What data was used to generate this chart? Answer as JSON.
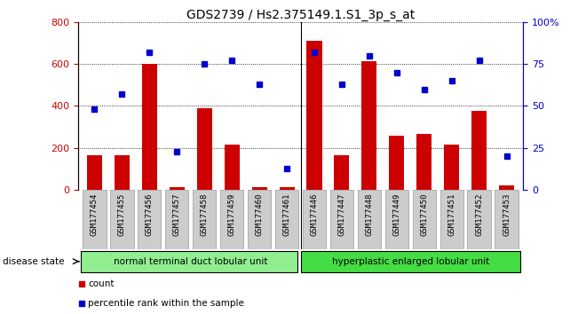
{
  "title": "GDS2739 / Hs2.375149.1.S1_3p_s_at",
  "samples": [
    "GSM177454",
    "GSM177455",
    "GSM177456",
    "GSM177457",
    "GSM177458",
    "GSM177459",
    "GSM177460",
    "GSM177461",
    "GSM177446",
    "GSM177447",
    "GSM177448",
    "GSM177449",
    "GSM177450",
    "GSM177451",
    "GSM177452",
    "GSM177453"
  ],
  "counts": [
    165,
    165,
    600,
    15,
    390,
    215,
    15,
    15,
    710,
    165,
    615,
    260,
    265,
    215,
    375,
    20
  ],
  "percentiles": [
    48,
    57,
    82,
    23,
    75,
    77,
    63,
    13,
    82,
    63,
    80,
    70,
    60,
    65,
    77,
    20
  ],
  "group1_label": "normal terminal duct lobular unit",
  "group2_label": "hyperplastic enlarged lobular unit",
  "group1_count": 8,
  "group2_count": 8,
  "ylim_left": [
    0,
    800
  ],
  "ylim_right": [
    0,
    100
  ],
  "yticks_left": [
    0,
    200,
    400,
    600,
    800
  ],
  "yticks_right": [
    0,
    25,
    50,
    75,
    100
  ],
  "bar_color": "#cc0000",
  "dot_color": "#0000cc",
  "group1_color": "#90EE90",
  "group2_color": "#44DD44",
  "legend_count_label": "count",
  "legend_pct_label": "percentile rank within the sample",
  "disease_state_label": "disease state",
  "title_fontsize": 10,
  "tick_fontsize": 6.5,
  "xtick_bg_color": "#cccccc"
}
